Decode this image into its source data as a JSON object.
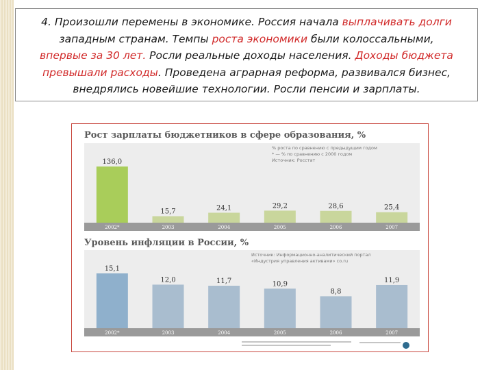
{
  "text": {
    "lines": [
      [
        {
          "t": "4. Произошли перемены в экономике. Россия начала "
        },
        {
          "t": "выплачивать долги",
          "hl": true
        }
      ],
      [
        {
          "t": "западным странам. Темпы "
        },
        {
          "t": "роста экономики",
          "hl": true
        },
        {
          "t": " были колоссальными,"
        }
      ],
      [
        {
          "t": "впервые за 30 лет.",
          "hl": true
        },
        {
          "t": " Росли реальные доходы населения. "
        },
        {
          "t": "Доходы бюджета",
          "hl": true
        }
      ],
      [
        {
          "t": "превышали расходы",
          "hl": true
        },
        {
          "t": ". Проведена аграрная реформа, развивался бизнес,"
        }
      ],
      [
        {
          "t": "внедрялись новейшие технологии. Росли пенсии и зарплаты."
        }
      ]
    ],
    "highlight_color": "#d12a2a"
  },
  "chart_data": [
    {
      "type": "bar",
      "title": "Рост зарплаты бюджетников в сфере образования, %",
      "notes": [
        "% роста по сравнению с предыдущим годом",
        "* — % по сравнению с 2000 годом",
        "Источник: Росстат"
      ],
      "categories": [
        "2002*",
        "2003",
        "2004",
        "2005",
        "2006",
        "2007"
      ],
      "values": [
        136.0,
        15.7,
        24.1,
        29.2,
        28.6,
        25.4
      ],
      "labels": [
        "136,0",
        "15,7",
        "24,1",
        "29,2",
        "28,6",
        "25,4"
      ],
      "ylim": [
        0,
        136
      ],
      "colors": {
        "first": "#a9cd5a",
        "rest": "#c9d69c"
      }
    },
    {
      "type": "bar",
      "title": "Уровень инфляции в России, %",
      "notes": [
        "Источник: Информационно-аналитический портал",
        "«Индустрия управления активами» со.ru"
      ],
      "categories": [
        "2002*",
        "2003",
        "2004",
        "2005",
        "2006",
        "2007"
      ],
      "values": [
        15.1,
        12.0,
        11.7,
        10.9,
        8.8,
        11.9
      ],
      "labels": [
        "15,1",
        "12,0",
        "11,7",
        "10,9",
        "8,8",
        "11,9"
      ],
      "ylim": [
        0,
        15.1
      ],
      "colors": {
        "first": "#8fb0cc",
        "rest": "#a9bdcf"
      }
    }
  ]
}
